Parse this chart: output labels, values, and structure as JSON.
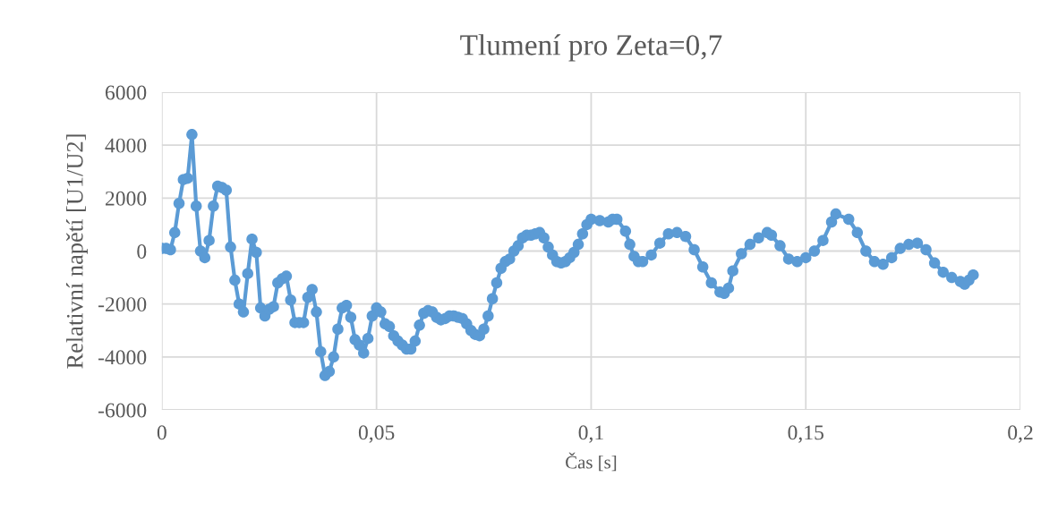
{
  "chart_data": {
    "type": "line",
    "title": "Tlumení pro Zeta=0,7",
    "xlabel": "Čas [s]",
    "ylabel": "Relativní napětí [U1/U2]",
    "xlim": [
      0,
      0.2
    ],
    "xticks": [
      0,
      {
        "value": 0.05,
        "label": "0,05"
      },
      {
        "value": 0.1,
        "label": "0,1"
      },
      {
        "value": 0.15,
        "label": "0,15"
      },
      {
        "value": 0.2,
        "label": "0,2"
      }
    ],
    "ylim": [
      -6000,
      6000
    ],
    "yticks": [
      -6000,
      -4000,
      -2000,
      0,
      2000,
      4000,
      6000
    ],
    "grid": true,
    "marker": "circle",
    "line_style": "solid",
    "series": [
      {
        "color": "#5b9bd5",
        "x": [
          0,
          0.001,
          0.002,
          0.003,
          0.004,
          0.005,
          0.006,
          0.007,
          0.008,
          0.009,
          0.01,
          0.011,
          0.012,
          0.013,
          0.014,
          0.015,
          0.016,
          0.017,
          0.018,
          0.019,
          0.02,
          0.021,
          0.022,
          0.023,
          0.024,
          0.025,
          0.026,
          0.027,
          0.028,
          0.029,
          0.03,
          0.031,
          0.032,
          0.033,
          0.034,
          0.035,
          0.036,
          0.037,
          0.038,
          0.039,
          0.04,
          0.041,
          0.042,
          0.043,
          0.044,
          0.045,
          0.046,
          0.047,
          0.048,
          0.049,
          0.05,
          0.051,
          0.052,
          0.053,
          0.054,
          0.055,
          0.056,
          0.057,
          0.058,
          0.059,
          0.06,
          0.061,
          0.062,
          0.063,
          0.064,
          0.065,
          0.066,
          0.067,
          0.068,
          0.069,
          0.07,
          0.071,
          0.072,
          0.073,
          0.074,
          0.075,
          0.076,
          0.077,
          0.078,
          0.079,
          0.08,
          0.081,
          0.082,
          0.083,
          0.084,
          0.085,
          0.086,
          0.087,
          0.088,
          0.089,
          0.09,
          0.091,
          0.092,
          0.093,
          0.094,
          0.095,
          0.096,
          0.097,
          0.098,
          0.099,
          0.1,
          0.102,
          0.104,
          0.105,
          0.106,
          0.108,
          0.109,
          0.11,
          0.111,
          0.112,
          0.114,
          0.116,
          0.118,
          0.12,
          0.122,
          0.124,
          0.126,
          0.128,
          0.13,
          0.131,
          0.132,
          0.133,
          0.135,
          0.137,
          0.139,
          0.141,
          0.142,
          0.144,
          0.146,
          0.148,
          0.15,
          0.152,
          0.154,
          0.156,
          0.157,
          0.16,
          0.162,
          0.164,
          0.166,
          0.168,
          0.17,
          0.172,
          0.174,
          0.176,
          0.178,
          0.18,
          0.182,
          0.184,
          0.186,
          0.187,
          0.188,
          0.189
        ],
        "values": [
          100,
          100,
          50,
          700,
          1800,
          2700,
          2750,
          4400,
          1700,
          0,
          -250,
          400,
          1700,
          2450,
          2400,
          2300,
          150,
          -1100,
          -2000,
          -2300,
          -850,
          450,
          -50,
          -2150,
          -2450,
          -2200,
          -2100,
          -1200,
          -1050,
          -950,
          -1850,
          -2700,
          -2700,
          -2700,
          -1750,
          -1450,
          -2300,
          -3800,
          -4700,
          -4550,
          -4000,
          -2950,
          -2150,
          -2050,
          -2500,
          -3350,
          -3550,
          -3850,
          -3300,
          -2450,
          -2150,
          -2300,
          -2750,
          -2850,
          -3200,
          -3400,
          -3550,
          -3700,
          -3700,
          -3400,
          -2800,
          -2350,
          -2250,
          -2300,
          -2500,
          -2600,
          -2550,
          -2450,
          -2450,
          -2500,
          -2550,
          -2750,
          -3000,
          -3150,
          -3200,
          -2950,
          -2450,
          -1800,
          -1200,
          -650,
          -400,
          -300,
          0,
          200,
          500,
          600,
          600,
          650,
          700,
          500,
          150,
          -150,
          -400,
          -450,
          -400,
          -250,
          -50,
          250,
          650,
          1000,
          1200,
          1150,
          1100,
          1200,
          1200,
          750,
          250,
          -200,
          -400,
          -400,
          -150,
          300,
          650,
          700,
          550,
          50,
          -600,
          -1200,
          -1550,
          -1600,
          -1400,
          -750,
          -100,
          250,
          500,
          700,
          600,
          200,
          -300,
          -400,
          -250,
          0,
          400,
          1100,
          1400,
          1200,
          700,
          0,
          -400,
          -500,
          -250,
          100,
          250,
          300,
          50,
          -450,
          -800,
          -1000,
          -1150,
          -1250,
          -1100,
          -900
        ]
      }
    ]
  }
}
